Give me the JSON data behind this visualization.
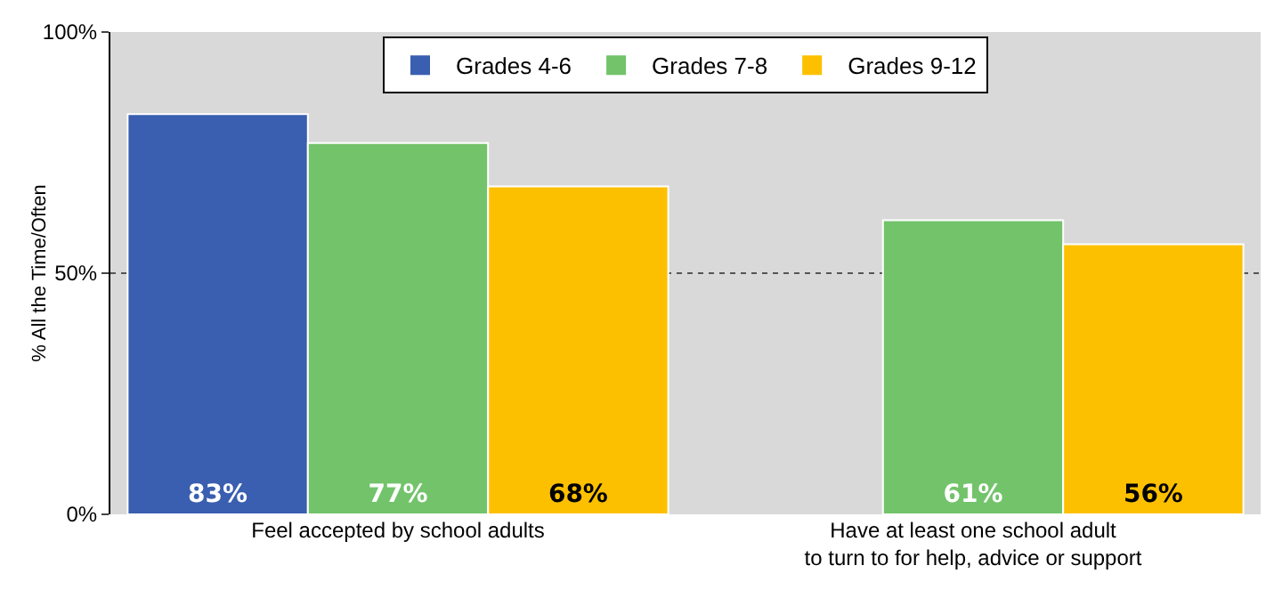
{
  "chart_data": {
    "type": "bar",
    "ylabel": "% All the Time/Often",
    "categories": [
      "Feel accepted by school adults",
      "Have at least one school adult\nto turn to for help, advice or support"
    ],
    "series": [
      {
        "name": "Grades 4-6",
        "color": "#3a5eb0",
        "values": [
          83,
          null
        ],
        "value_labels": [
          "83%",
          null
        ]
      },
      {
        "name": "Grades 7-8",
        "color": "#73c36b",
        "values": [
          77,
          61
        ],
        "value_labels": [
          "77%",
          "61%"
        ]
      },
      {
        "name": "Grades 9-12",
        "color": "#fdc000",
        "values": [
          68,
          56
        ],
        "value_labels": [
          "68%",
          "56%"
        ]
      }
    ],
    "ylim": [
      0,
      100
    ],
    "yticks": [
      {
        "value": 0,
        "label": "0%"
      },
      {
        "value": 50,
        "label": "50%"
      },
      {
        "value": 100,
        "label": "100%"
      }
    ],
    "grid": "y",
    "legend": "top"
  }
}
